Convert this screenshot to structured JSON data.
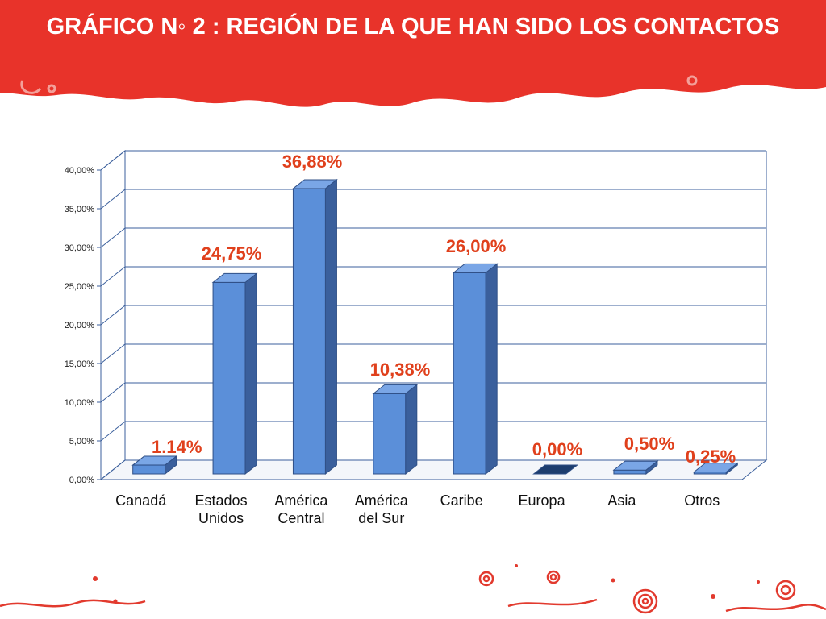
{
  "slide": {
    "title": "GRÁFICO N◦ 2 : REGIÓN DE LA QUE HAN SIDO LOS CONTACTOS",
    "header_color": "#e8332a"
  },
  "chart_data": {
    "type": "bar",
    "title": "",
    "xlabel": "",
    "ylabel": "",
    "categories": [
      [
        "Canadá"
      ],
      [
        "Estados",
        "Unidos"
      ],
      [
        "América",
        "Central"
      ],
      [
        "América",
        "del Sur"
      ],
      [
        "Caribe"
      ],
      [
        "Europa"
      ],
      [
        "Asia"
      ],
      [
        "Otros"
      ]
    ],
    "values": [
      1.14,
      24.75,
      36.88,
      10.38,
      26.0,
      0.0,
      0.5,
      0.25
    ],
    "data_labels": [
      "1.14%",
      "24,75%",
      "36,88%",
      "10,38%",
      "26,00%",
      "0,00%",
      "0,50%",
      "0,25%"
    ],
    "ylim": [
      0,
      40
    ],
    "ytick_labels": [
      "0,00%",
      "5,00%",
      "10,00%",
      "15,00%",
      "20,00%",
      "25,00%",
      "30,00%",
      "35,00%",
      "40,00%"
    ],
    "grid": true,
    "style": "3d-column",
    "bar_color": "#5b8fd9",
    "label_color": "#e0401c"
  }
}
